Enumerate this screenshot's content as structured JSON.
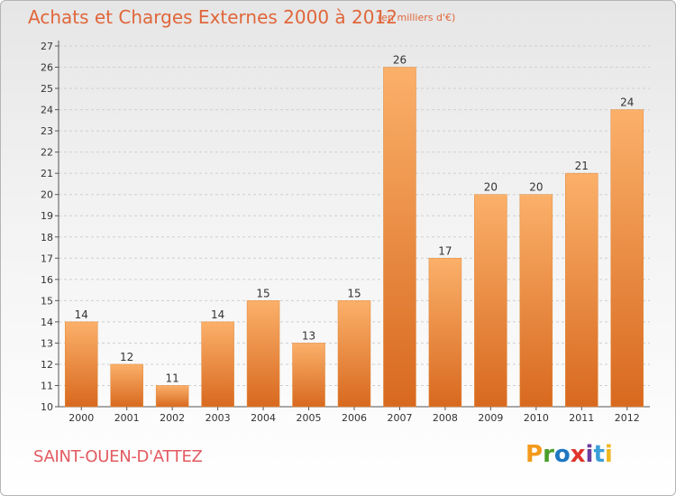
{
  "header": {
    "title": "Achats et Charges Externes 2000 à 2012",
    "unit": "(en milliers d'€)"
  },
  "footer": {
    "commune": "SAINT-OUEN-D'ATTEZ",
    "logo_text": "Proxiti",
    "logo_colors": [
      "#f39a1c",
      "#4d9e2b",
      "#1f77c2",
      "#e0342b",
      "#6c3c9e",
      "#3a9fd8",
      "#f0b81f"
    ]
  },
  "colors": {
    "bar_light": "#fbb06a",
    "bar_dark": "#d8691f",
    "title": "#e0663a",
    "commune": "#e35b61"
  },
  "chart_data": {
    "type": "bar",
    "categories": [
      "2000",
      "2001",
      "2002",
      "2003",
      "2004",
      "2005",
      "2006",
      "2007",
      "2008",
      "2009",
      "2010",
      "2011",
      "2012"
    ],
    "values": [
      14,
      12,
      11,
      14,
      15,
      13,
      15,
      26,
      17,
      20,
      20,
      21,
      24
    ],
    "title": "Achats et Charges Externes 2000 à 2012",
    "subtitle": "(en milliers d'€)",
    "ylim": [
      10,
      27
    ],
    "yticks": [
      10,
      11,
      12,
      13,
      14,
      15,
      16,
      17,
      18,
      19,
      20,
      21,
      22,
      23,
      24,
      25,
      26,
      27
    ],
    "grid": true,
    "data_labels": true
  }
}
